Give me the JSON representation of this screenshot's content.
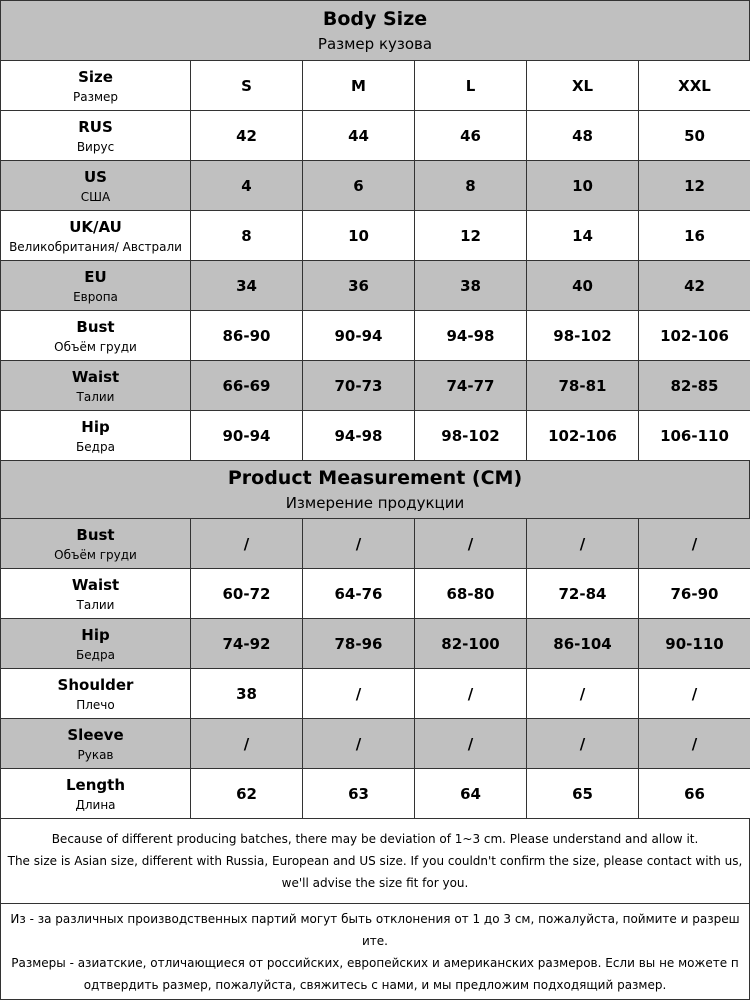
{
  "body_size": {
    "title": "Body Size",
    "subtitle": "Размер кузова",
    "header": {
      "label": "Size",
      "sublabel": "Размер",
      "columns": [
        "S",
        "M",
        "L",
        "XL",
        "XXL"
      ]
    },
    "rows": [
      {
        "label": "RUS",
        "sublabel": "Вирус",
        "values": [
          42,
          44,
          46,
          48,
          50
        ]
      },
      {
        "label": "US",
        "sublabel": "США",
        "values": [
          4,
          6,
          8,
          10,
          12
        ]
      },
      {
        "label": "UK/AU",
        "sublabel": "Великобритания/ Австрали",
        "values": [
          8,
          10,
          12,
          14,
          16
        ]
      },
      {
        "label": "EU",
        "sublabel": "Европа",
        "values": [
          34,
          36,
          38,
          40,
          42
        ]
      },
      {
        "label": "Bust",
        "sublabel": "Объём груди",
        "values": [
          "86-90",
          "90-94",
          "94-98",
          "98-102",
          "102-106"
        ]
      },
      {
        "label": "Waist",
        "sublabel": "Талии",
        "values": [
          "66-69",
          "70-73",
          "74-77",
          "78-81",
          "82-85"
        ]
      },
      {
        "label": "Hip",
        "sublabel": "Бедра",
        "values": [
          "90-94",
          "94-98",
          "98-102",
          "102-106",
          "106-110"
        ]
      }
    ]
  },
  "product_measurement": {
    "title": "Product Measurement (CM)",
    "subtitle": "Измерение продукции",
    "rows": [
      {
        "label": "Bust",
        "sublabel": "Объём груди",
        "values": [
          "/",
          "/",
          "/",
          "/",
          "/"
        ]
      },
      {
        "label": "Waist",
        "sublabel": "Талии",
        "values": [
          "60-72",
          "64-76",
          "68-80",
          "72-84",
          "76-90"
        ]
      },
      {
        "label": "Hip",
        "sublabel": "Бедра",
        "values": [
          "74-92",
          "78-96",
          "82-100",
          "86-104",
          "90-110"
        ]
      },
      {
        "label": "Shoulder",
        "sublabel": "Плечо",
        "values": [
          38,
          "/",
          "/",
          "/",
          "/"
        ]
      },
      {
        "label": "Sleeve",
        "sublabel": "Рукав",
        "values": [
          "/",
          "/",
          "/",
          "/",
          "/"
        ]
      },
      {
        "label": "Length",
        "sublabel": "Длина",
        "values": [
          62,
          63,
          64,
          65,
          66
        ]
      }
    ]
  },
  "notes_en": [
    "Because of different producing batches, there may be deviation of 1~3 cm. Please understand and allow it.",
    "The size is Asian size, different with Russia, European and US size. If you couldn't confirm the size, please contact with us,",
    "we'll advise the size fit for you."
  ],
  "notes_ru": [
    "Из - за различных производственных партий могут быть отклонения от 1 до 3 см, пожалуйста, поймите и разреш",
    "ите.",
    "Размеры - азиатские, отличающиеся от российских, европейских и американских размеров. Если вы не можете п",
    "одтвердить размер, пожалуйста, свяжитесь с нами, и мы предложим подходящий размер."
  ]
}
